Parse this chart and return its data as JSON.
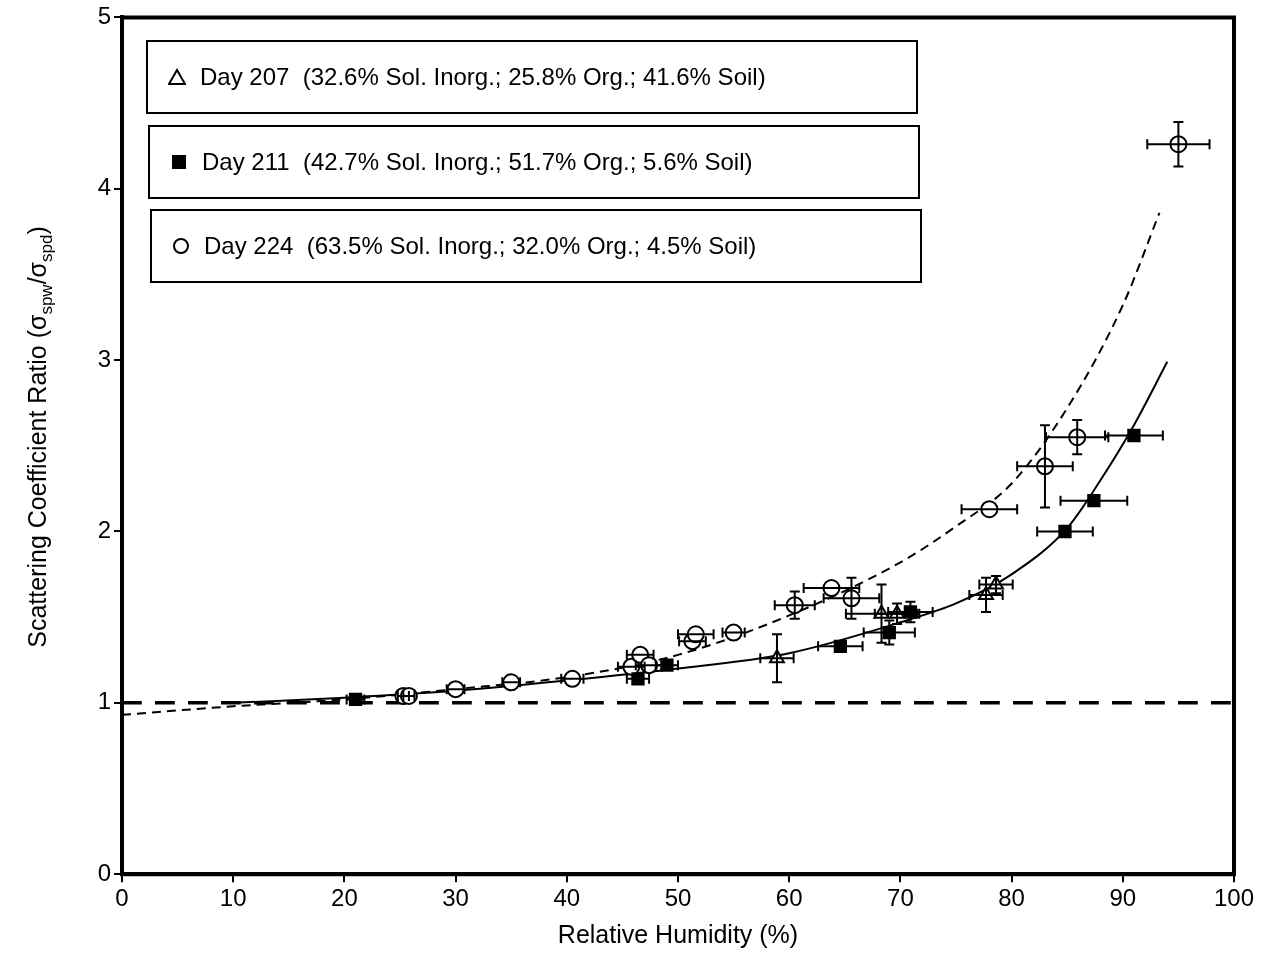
{
  "chart_data": {
    "type": "scatter",
    "xlabel": "Relative Humidity (%)",
    "ylabel": "Scattering Coefficient Ratio (σ$_{spw}$/σ$_{spd}$)",
    "xlim": [
      0,
      100
    ],
    "xticks": [
      0,
      10,
      20,
      30,
      40,
      50,
      60,
      70,
      80,
      90,
      100
    ],
    "ylim": [
      0,
      5
    ],
    "yticks": [
      0,
      1,
      2,
      3,
      4,
      5
    ],
    "grid": false,
    "legend": "top left",
    "ref_lines": [
      {
        "axis": "y",
        "value": 1,
        "line_style": "dashed",
        "color": "#000000"
      }
    ],
    "series": [
      {
        "name": "Day 207  (32.6% Sol. Inorg.; 25.8% Org.; 41.6% Soil)",
        "color": "#000000",
        "marker": "triangle",
        "x": [
          58.9,
          68.3,
          69.7,
          77.7,
          78.6
        ],
        "values": [
          1.26,
          1.52,
          1.52,
          1.63,
          1.69
        ],
        "errors": [
          0.14,
          0.17,
          0.06,
          0.1,
          0.05
        ],
        "xerrors": [
          1.5,
          3.2,
          2.0,
          1.5,
          1.5
        ]
      },
      {
        "name": "Day 211  (42.7% Sol. Inorg.; 51.7% Org.; 5.6% Soil)",
        "color": "#000000",
        "marker": "square",
        "x": [
          21.0,
          46.4,
          49.0,
          64.6,
          69.0,
          70.9,
          84.8,
          87.4,
          91.0
        ],
        "values": [
          1.02,
          1.14,
          1.22,
          1.33,
          1.41,
          1.53,
          2.0,
          2.18,
          2.56
        ],
        "errors": [
          null,
          null,
          null,
          null,
          0.07,
          0.06,
          null,
          null,
          null
        ],
        "xerrors": [
          0.8,
          1.0,
          1.0,
          2.0,
          2.3,
          2.0,
          2.5,
          3.0,
          2.6
        ]
      },
      {
        "name": "Day 224  (63.5% Sol. Inorg.; 32.0% Org.; 4.5% Soil)",
        "color": "#000000",
        "marker": "circle",
        "x": [
          25.3,
          25.8,
          30.0,
          35.0,
          40.5,
          45.8,
          46.6,
          47.4,
          51.3,
          51.6,
          55.0,
          60.5,
          63.8,
          65.6,
          78.0,
          83.0,
          85.9,
          95.0
        ],
        "values": [
          1.04,
          1.04,
          1.08,
          1.12,
          1.14,
          1.21,
          1.28,
          1.22,
          1.36,
          1.4,
          1.41,
          1.57,
          1.67,
          1.61,
          2.13,
          2.38,
          2.55,
          4.26
        ],
        "errors": [
          null,
          null,
          null,
          null,
          null,
          null,
          null,
          null,
          null,
          null,
          null,
          0.08,
          null,
          0.12,
          null,
          0.24,
          0.1,
          0.13
        ],
        "xerrors": [
          0.5,
          0.5,
          0.8,
          0.8,
          1.0,
          1.2,
          1.2,
          1.2,
          1.2,
          1.6,
          1.0,
          1.8,
          2.5,
          2.5,
          2.5,
          2.5,
          2.8,
          2.8
        ]
      },
      {
        "type": "line",
        "line_style": "dashed",
        "color": "#000000",
        "marker": "none",
        "x": [
          0,
          10,
          20,
          30,
          40,
          50,
          60,
          70,
          75,
          80,
          85,
          90,
          93.3
        ],
        "values": [
          0.93,
          0.98,
          1.02,
          1.08,
          1.15,
          1.28,
          1.51,
          1.82,
          2.03,
          2.28,
          2.72,
          3.32,
          3.86
        ]
      },
      {
        "type": "line",
        "line_style": "solid",
        "color": "#000000",
        "marker": "none",
        "x": [
          10,
          20,
          30,
          40,
          50,
          60,
          70,
          75,
          80,
          85,
          88,
          91,
          94
        ],
        "values": [
          1.0,
          1.03,
          1.07,
          1.13,
          1.2,
          1.29,
          1.47,
          1.58,
          1.75,
          2.02,
          2.3,
          2.62,
          2.99
        ]
      }
    ]
  }
}
